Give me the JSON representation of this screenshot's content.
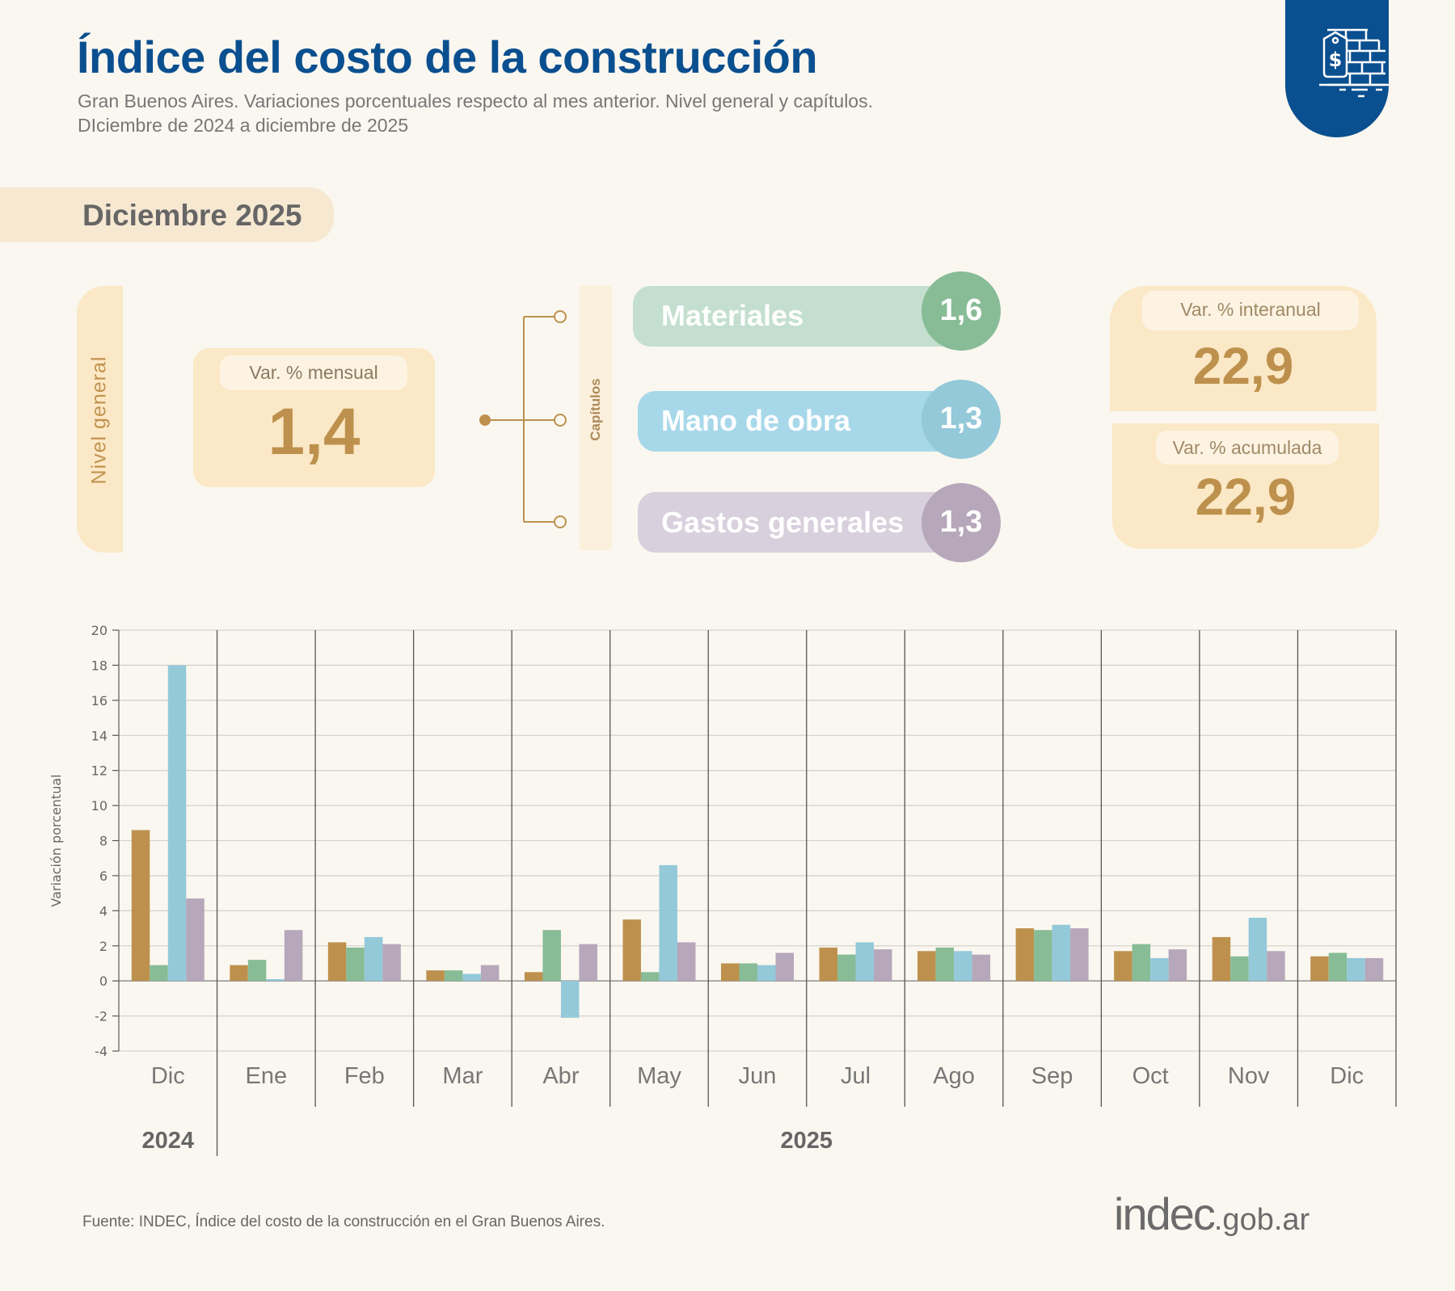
{
  "header": {
    "title": "Índice del costo de la construcción",
    "subtitle_line1": "Gran Buenos Aires. Variaciones porcentuales respecto al mes anterior. Nivel general y capítulos.",
    "subtitle_line2": "DIciembre de 2024 a diciembre de 2025",
    "badge_icon": "brick-wall-price-tag-icon"
  },
  "period": "Diciembre 2025",
  "nivel_general": {
    "side_label": "Nivel general",
    "label": "Var. % mensual",
    "value": "1,4"
  },
  "capitulos": {
    "side_label": "Capítulos",
    "items": [
      {
        "name": "Materiales",
        "value": "1,6",
        "bar_color": "#c4dfd0",
        "circle_color": "#88bc96"
      },
      {
        "name": "Mano de obra",
        "value": "1,3",
        "bar_color": "#a7d8ea",
        "circle_color": "#93c9d9"
      },
      {
        "name": "Gastos generales",
        "value": "1,3",
        "bar_color": "#d8d0dc",
        "circle_color": "#b6a7ba"
      }
    ]
  },
  "kpis": {
    "interanual": {
      "label": "Var. % interanual",
      "value": "22,9"
    },
    "acumulada": {
      "label": "Var. % acumulada",
      "value": "22,9"
    }
  },
  "chart_data": {
    "type": "bar",
    "title": "",
    "xlabel": "",
    "ylabel": "Variación porcentual",
    "ylim": [
      -4,
      20
    ],
    "yticks": [
      20,
      18,
      16,
      14,
      12,
      10,
      8,
      6,
      4,
      2,
      0,
      -2,
      -4
    ],
    "grid": true,
    "legend": "none",
    "categories": [
      "Dic",
      "Ene",
      "Feb",
      "Mar",
      "Abr",
      "May",
      "Jun",
      "Jul",
      "Ago",
      "Sep",
      "Oct",
      "Nov",
      "Dic"
    ],
    "year_groups": [
      {
        "label": "2024",
        "from": 0,
        "to": 0
      },
      {
        "label": "2025",
        "from": 1,
        "to": 12
      }
    ],
    "series": [
      {
        "name": "Nivel general",
        "color": "#bd914d",
        "values": [
          8.6,
          0.9,
          2.2,
          0.6,
          0.5,
          3.5,
          1.0,
          1.9,
          1.7,
          3.0,
          1.7,
          2.5,
          1.4
        ]
      },
      {
        "name": "Materiales",
        "color": "#88bc96",
        "values": [
          0.9,
          1.2,
          1.9,
          0.6,
          2.9,
          0.5,
          1.0,
          1.5,
          1.9,
          2.9,
          2.1,
          1.4,
          1.6
        ]
      },
      {
        "name": "Mano de obra",
        "color": "#93c9d9",
        "values": [
          18.0,
          0.1,
          2.5,
          0.4,
          -2.1,
          6.6,
          0.9,
          2.2,
          1.7,
          3.2,
          1.3,
          3.6,
          1.3
        ]
      },
      {
        "name": "Gastos generales",
        "color": "#b6a7ba",
        "values": [
          4.7,
          2.9,
          2.1,
          0.9,
          2.1,
          2.2,
          1.6,
          1.8,
          1.5,
          3.0,
          1.8,
          1.7,
          1.3
        ]
      }
    ]
  },
  "footer": {
    "source": "Fuente: INDEC, Índice del costo de la construcción en el Gran Buenos Aires.",
    "logo_main": "indec",
    "logo_suffix": ".gob.ar"
  }
}
